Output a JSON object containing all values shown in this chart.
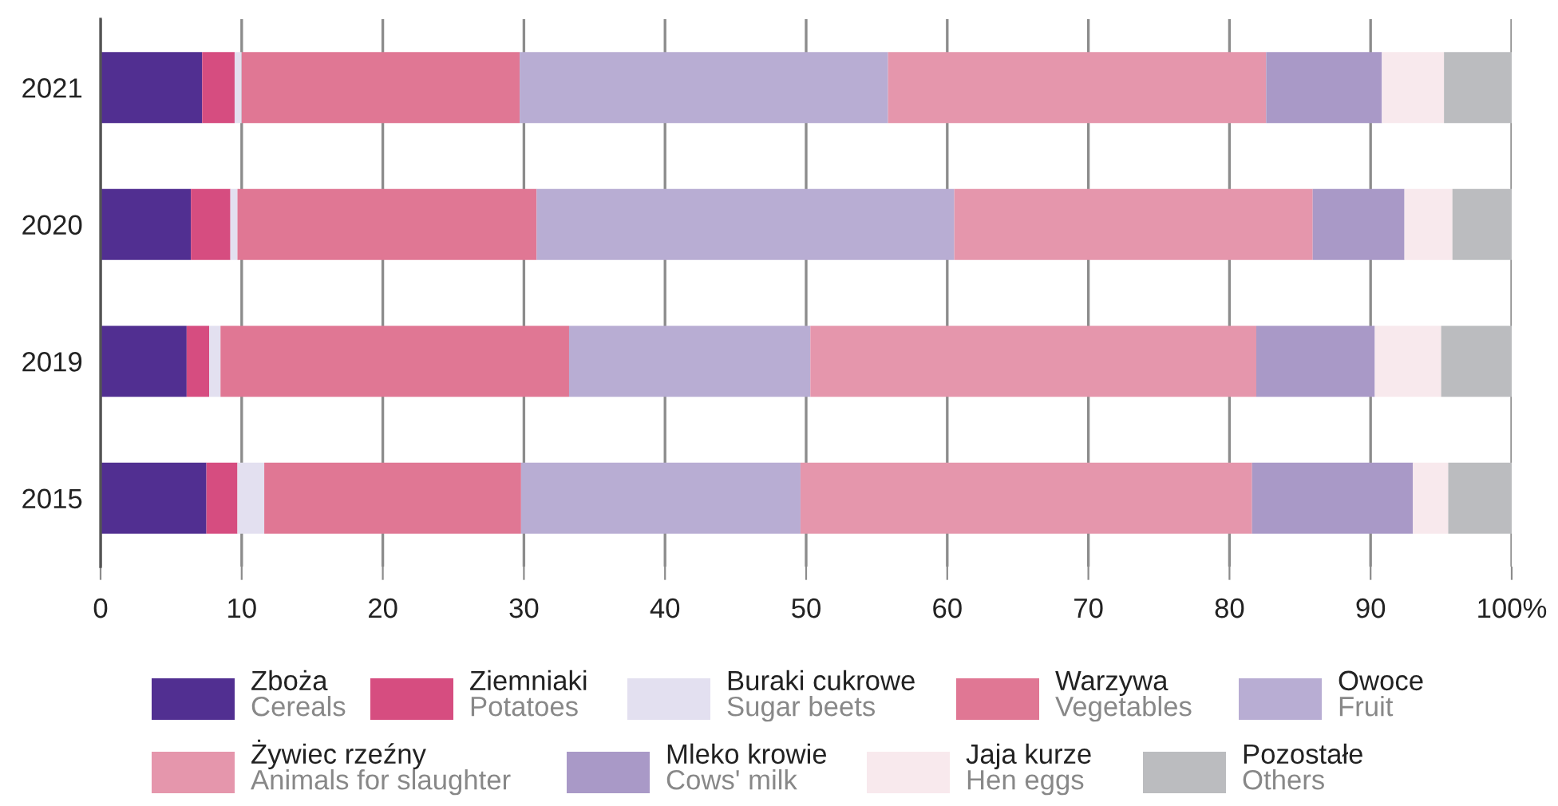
{
  "chart_data": {
    "type": "bar",
    "orientation": "horizontal",
    "stacked": true,
    "categories": [
      "2021",
      "2020",
      "2019",
      "2015"
    ],
    "series": [
      {
        "name": "Zboża\nCereals",
        "color": "#512f91",
        "values": [
          7.2,
          6.4,
          6.1,
          7.5
        ]
      },
      {
        "name": "Ziemniaki\nPotatoes",
        "color": "#d64d80",
        "values": [
          2.3,
          2.8,
          1.6,
          2.2
        ]
      },
      {
        "name": "Buraki cukrowe\nSugar beets",
        "color": "#e3e0f0",
        "values": [
          0.5,
          0.5,
          0.8,
          1.9
        ]
      },
      {
        "name": "Warzywa\nVegetables",
        "color": "#e07794",
        "values": [
          19.7,
          21.2,
          24.7,
          18.2
        ]
      },
      {
        "name": "Owoce\nFruit",
        "color": "#b8add3",
        "values": [
          26.1,
          29.6,
          17.1,
          19.8
        ]
      },
      {
        "name": "Żywiec rzeźny\nAnimals for slaughter",
        "color": "#e596ac",
        "values": [
          26.8,
          25.4,
          31.6,
          32.0
        ]
      },
      {
        "name": "Mleko krowie\nCows' milk",
        "color": "#a999c7",
        "values": [
          8.2,
          6.5,
          8.4,
          11.4
        ]
      },
      {
        "name": "Jaja kurze\nHen eggs",
        "color": "#f8e9ed",
        "values": [
          4.4,
          3.4,
          4.7,
          2.5
        ]
      },
      {
        "name": "Pozostałe\nOthers",
        "color": "#bbbcbf",
        "values": [
          4.8,
          4.2,
          5.0,
          4.5
        ]
      }
    ],
    "xlim": [
      0,
      100
    ],
    "xticks": [
      0,
      10,
      20,
      30,
      40,
      50,
      60,
      70,
      80,
      90,
      {
        "value": 100,
        "label": "100%"
      }
    ],
    "grid": "x",
    "legend": "bottom"
  }
}
